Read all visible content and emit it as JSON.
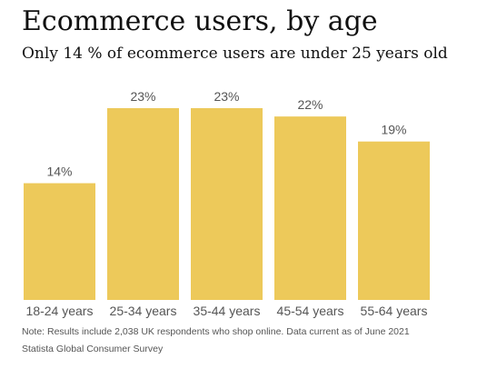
{
  "chart_data": {
    "type": "bar",
    "title": "Ecommerce users, by age",
    "subtitle": "Only 14 % of ecommerce users are under 25 years old",
    "categories": [
      "18-24 years",
      "25-34 years",
      "35-44 years",
      "45-54 years",
      "55-64 years"
    ],
    "values": [
      14,
      23,
      23,
      22,
      19
    ],
    "value_labels": [
      "14%",
      "23%",
      "23%",
      "22%",
      "19%"
    ],
    "unit": "%",
    "ylim": [
      0,
      23
    ],
    "grid": false,
    "legend": "none",
    "bar_color": "#EDC95A"
  },
  "footer": {
    "note": "Note: Results include 2,038 UK respondents who shop online. Data current as of June 2021",
    "source": "Statista Global Consumer Survey"
  }
}
